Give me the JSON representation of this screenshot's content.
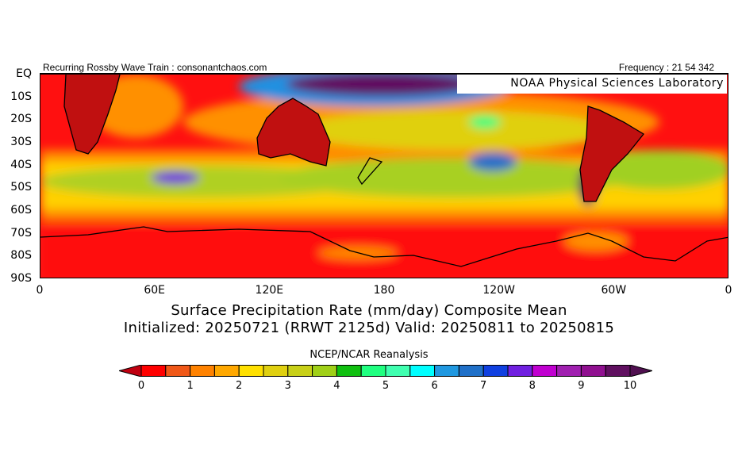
{
  "header": {
    "left": "Recurring Rossby Wave Train : consonantchaos.com",
    "right": "Frequency : 21 54 342"
  },
  "credit": "NOAA Physical Sciences Laboratory",
  "map": {
    "lat_labels": [
      "EQ",
      "10S",
      "20S",
      "30S",
      "40S",
      "50S",
      "60S",
      "70S",
      "80S",
      "90S"
    ],
    "lon_labels": [
      "0",
      "60E",
      "120E",
      "180",
      "120W",
      "60W",
      "0"
    ]
  },
  "title": {
    "line1": "Surface Precipitation Rate (mm/day) Composite Mean",
    "line2": "Initialized: 20250721 (RRWT 2125d) Valid: 20250811 to 20250815"
  },
  "colorbar": {
    "source": "NCEP/NCAR Reanalysis",
    "labels": [
      "0",
      "1",
      "2",
      "3",
      "4",
      "5",
      "6",
      "7",
      "8",
      "9",
      "10"
    ],
    "under_color": "#c00010",
    "over_color": "#501050",
    "colors": [
      "#ff0000",
      "#f05818",
      "#ff8200",
      "#ffa800",
      "#ffe000",
      "#e0d010",
      "#c8d018",
      "#a0d018",
      "#10c010",
      "#20ff80",
      "#40ffb0",
      "#00ffff",
      "#2098e0",
      "#2070c8",
      "#1040e0",
      "#7020e0",
      "#c000d0",
      "#a020b0",
      "#901090",
      "#601060"
    ]
  }
}
